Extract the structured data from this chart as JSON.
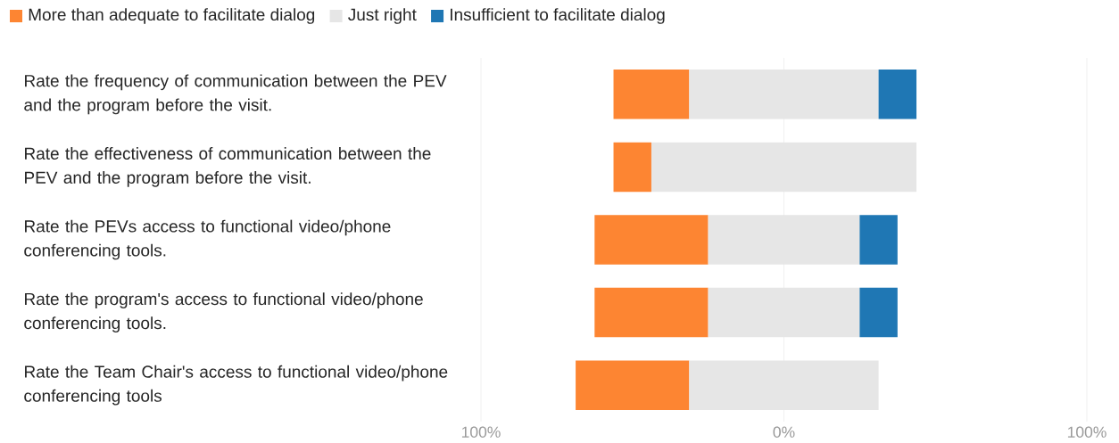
{
  "chart_data": {
    "type": "bar",
    "orientation": "horizontal",
    "categories": [
      "Rate the frequency of communication between the PEV and the program before the visit.",
      "Rate the effectiveness of communication between the PEV and the program before the visit.",
      "Rate the PEVs access to functional video/phone conferencing tools.",
      "Rate the program's access to functional video/phone conferencing tools.",
      "Rate the Team Chair's access to functional video/phone conferencing tools"
    ],
    "series": [
      {
        "name": "More than adequate to facilitate dialog",
        "color": "#fd8532",
        "base": [
          -56.25,
          -56.25,
          -62.5,
          -62.5,
          -68.75
        ],
        "values": [
          25,
          12.5,
          37.5,
          37.5,
          37.5
        ]
      },
      {
        "name": "Just right",
        "color": "#e6e6e6",
        "base": [
          -31.25,
          -43.75,
          -25,
          -25,
          -31.25
        ],
        "values": [
          62.5,
          87.5,
          50,
          50,
          62.5
        ]
      },
      {
        "name": "Insufficient to facilitate dialog",
        "color": "#1f77b4",
        "base": [
          31.25,
          null,
          25,
          25,
          null
        ],
        "values": [
          12.5,
          null,
          12.5,
          12.5,
          null
        ]
      }
    ],
    "xlim": [
      -100,
      100
    ],
    "xticks": [
      {
        "value": -100,
        "label": "100%"
      },
      {
        "value": 0,
        "label": "0%"
      },
      {
        "value": 100,
        "label": "100%"
      }
    ],
    "grid": "x",
    "legend": "top left"
  }
}
